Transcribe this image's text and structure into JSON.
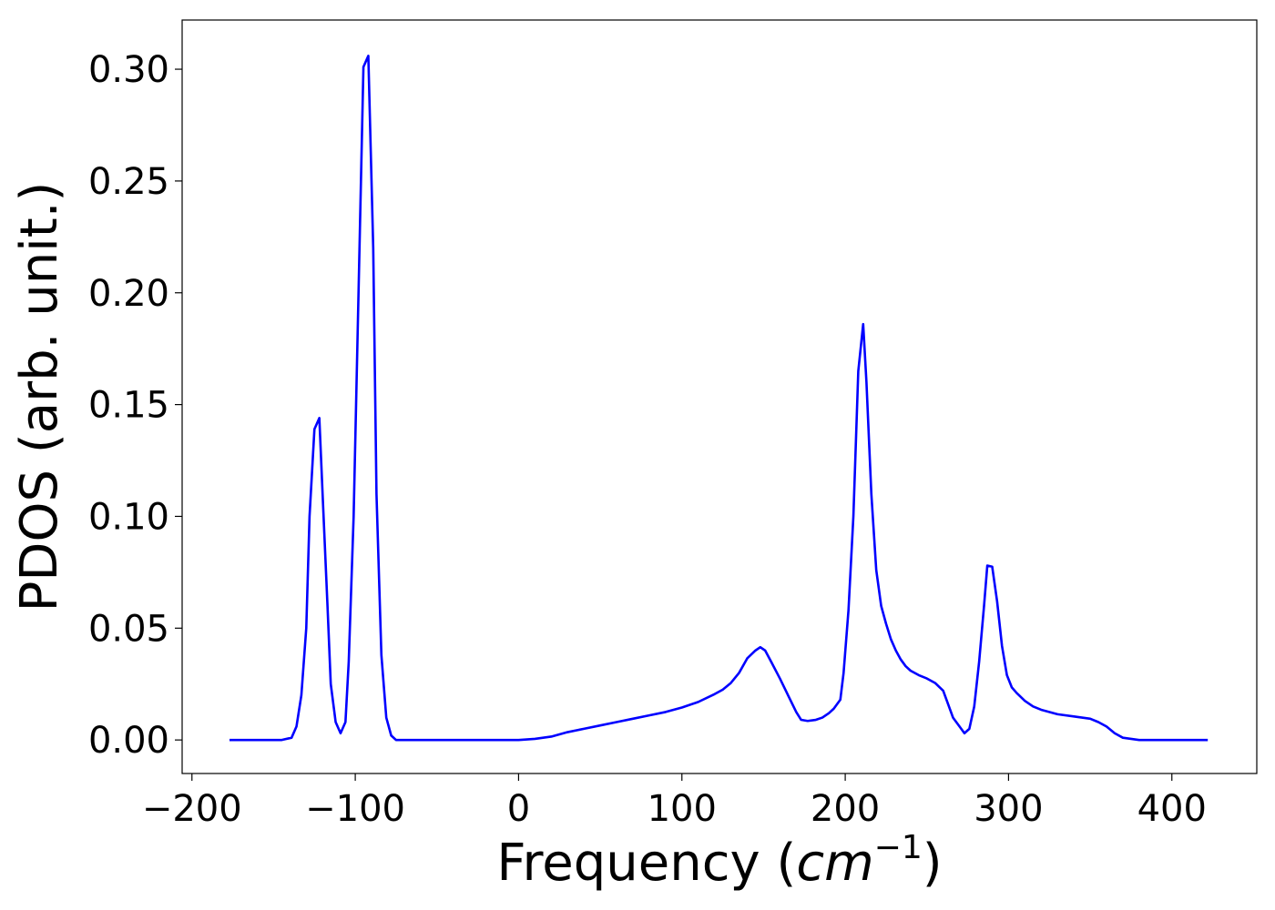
{
  "chart_data": {
    "type": "line",
    "title": "",
    "xlabel_prefix": "Frequency (",
    "xlabel_math": "cm",
    "xlabel_sup": "−1",
    "xlabel_suffix": ")",
    "ylabel": "PDOS (arb. unit.)",
    "xlim": [
      -206,
      452
    ],
    "ylim": [
      -0.015,
      0.322
    ],
    "xticks": [
      -200,
      -100,
      0,
      100,
      200,
      300,
      400
    ],
    "xtick_labels": [
      "−200",
      "−100",
      "0",
      "100",
      "200",
      "300",
      "400"
    ],
    "yticks": [
      0.0,
      0.05,
      0.1,
      0.15,
      0.2,
      0.25,
      0.3
    ],
    "ytick_labels": [
      "0.00",
      "0.05",
      "0.10",
      "0.15",
      "0.20",
      "0.25",
      "0.30"
    ],
    "grid": false,
    "line_color": "#0000ff",
    "series": [
      {
        "x": [
          -177,
          -145,
          -139,
          -136,
          -133,
          -130,
          -128,
          -125,
          -122,
          -120,
          -117,
          -115,
          -112,
          -109,
          -106,
          -104,
          -101,
          -98,
          -95,
          -92,
          -89,
          -87,
          -84,
          -81,
          -78,
          -75,
          -72,
          -69,
          -66,
          -60,
          -40,
          -20,
          0,
          10,
          20,
          30,
          40,
          50,
          60,
          70,
          80,
          90,
          100,
          110,
          120,
          125,
          130,
          135,
          140,
          145,
          148,
          151,
          155,
          160,
          165,
          170,
          173,
          177,
          182,
          186,
          190,
          193,
          197,
          199,
          202,
          205,
          208,
          211,
          213,
          216,
          219,
          222,
          225,
          228,
          231,
          234,
          237,
          240,
          245,
          250,
          255,
          260,
          263,
          266,
          270,
          273,
          276,
          279,
          282,
          285,
          287,
          290,
          293,
          296,
          299,
          302,
          305,
          310,
          315,
          320,
          330,
          340,
          350,
          355,
          360,
          365,
          370,
          375,
          380,
          390,
          422
        ],
        "y": [
          0.0,
          0.0,
          0.001,
          0.006,
          0.02,
          0.05,
          0.1,
          0.139,
          0.144,
          0.11,
          0.06,
          0.025,
          0.008,
          0.003,
          0.008,
          0.035,
          0.1,
          0.2,
          0.301,
          0.306,
          0.22,
          0.11,
          0.038,
          0.01,
          0.002,
          0.0,
          0.0,
          0.0,
          0.0,
          0.0,
          0.0,
          0.0,
          0.0,
          0.0005,
          0.0015,
          0.0035,
          0.005,
          0.0065,
          0.008,
          0.0095,
          0.011,
          0.0125,
          0.0145,
          0.017,
          0.0205,
          0.0225,
          0.0255,
          0.03,
          0.0365,
          0.04,
          0.0415,
          0.04,
          0.0345,
          0.0275,
          0.02,
          0.0125,
          0.009,
          0.0085,
          0.009,
          0.01,
          0.012,
          0.014,
          0.018,
          0.03,
          0.058,
          0.1,
          0.165,
          0.186,
          0.16,
          0.11,
          0.076,
          0.06,
          0.052,
          0.045,
          0.04,
          0.036,
          0.033,
          0.031,
          0.029,
          0.0275,
          0.0255,
          0.022,
          0.016,
          0.01,
          0.006,
          0.003,
          0.005,
          0.015,
          0.035,
          0.06,
          0.078,
          0.0775,
          0.062,
          0.042,
          0.029,
          0.0235,
          0.021,
          0.0175,
          0.015,
          0.0135,
          0.0115,
          0.0105,
          0.0095,
          0.008,
          0.006,
          0.003,
          0.001,
          0.0005,
          0.0,
          0.0,
          0.0
        ]
      }
    ]
  }
}
